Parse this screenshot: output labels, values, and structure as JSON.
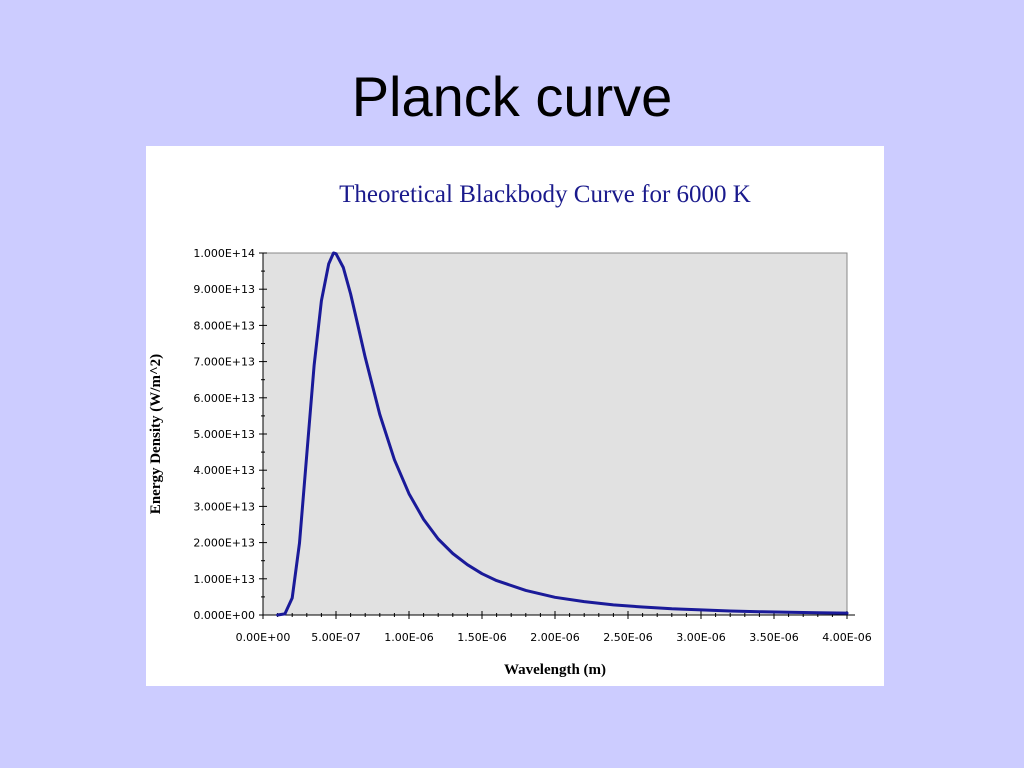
{
  "slide": {
    "title": "Planck curve"
  },
  "colors": {
    "background": "#ccccff",
    "panel": "#ffffff",
    "plot_area": "#e1e1e1",
    "series": "#1a1a99",
    "chart_title": "#1a1a8c"
  },
  "chart_data": {
    "type": "line",
    "title": "Theoretical Blackbody Curve for 6000 K",
    "xlabel": "Wavelength (m)",
    "ylabel": "Energy Density (W/m^2)",
    "xlim": [
      0,
      4e-06
    ],
    "ylim": [
      0,
      100000000000000.0
    ],
    "grid": false,
    "x_ticks": [
      0,
      5e-07,
      1e-06,
      1.5e-06,
      2e-06,
      2.5e-06,
      3e-06,
      3.5e-06,
      4e-06
    ],
    "x_tick_labels": [
      "0.00E+00",
      "5.00E-07",
      "1.00E-06",
      "1.50E-06",
      "2.00E-06",
      "2.50E-06",
      "3.00E-06",
      "3.50E-06",
      "4.00E-06"
    ],
    "y_ticks": [
      0,
      10000000000000.0,
      20000000000000.0,
      30000000000000.0,
      40000000000000.0,
      50000000000000.0,
      60000000000000.0,
      70000000000000.0,
      80000000000000.0,
      90000000000000.0,
      100000000000000.0
    ],
    "y_tick_labels": [
      "0.000E+00",
      "1.000E+13",
      "2.000E+13",
      "3.000E+13",
      "4.000E+13",
      "5.000E+13",
      "6.000E+13",
      "7.000E+13",
      "8.000E+13",
      "9.000E+13",
      "1.000E+14"
    ],
    "series": [
      {
        "x": [
          1e-07,
          1.5e-07,
          2e-07,
          2.5e-07,
          3e-07,
          3.5e-07,
          4e-07,
          4.5e-07,
          4.83e-07,
          5e-07,
          5.5e-07,
          6e-07,
          6.5e-07,
          7e-07,
          8e-07,
          9e-07,
          1e-06,
          1.1e-06,
          1.2e-06,
          1.3e-06,
          1.4e-06,
          1.5e-06,
          1.6e-06,
          1.8e-06,
          2e-06,
          2.2e-06,
          2.4e-06,
          2.6e-06,
          2.8e-06,
          3e-06,
          3.2e-06,
          3.4e-06,
          3.6e-06,
          3.8e-06,
          4e-06
        ],
        "y": [
          0.0,
          300000000000.0,
          4700000000000.0,
          19900000000000.0,
          44400000000000.0,
          68900000000000.0,
          86800000000000.0,
          97000000000000.0,
          100000000000000.0,
          99800000000000.0,
          96000000000000.0,
          88700000000000.0,
          80000000000000.0,
          71200000000000.0,
          55400000000000.0,
          42900000000000.0,
          33500000000000.0,
          26400000000000.0,
          21000000000000.0,
          17000000000000.0,
          13900000000000.0,
          11400000000000.0,
          9500000000000.0,
          6800000000000.0,
          4900000000000.0,
          3700000000000.0,
          2800000000000.0,
          2200000000000.0,
          1700000000000.0,
          1400000000000.0,
          1100000000000.0,
          900000000000.0,
          750000000000.0,
          630000000000.0,
          530000000000.0
        ]
      }
    ]
  }
}
